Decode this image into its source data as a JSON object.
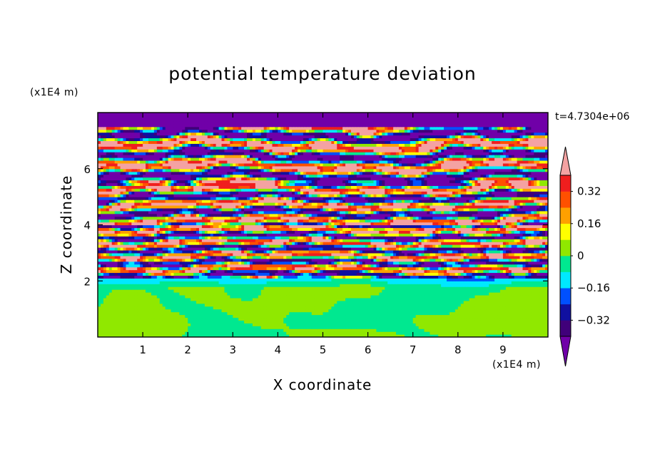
{
  "chart_data": {
    "type": "heatmap",
    "title": "potential temperature deviation",
    "xlabel": "X coordinate",
    "ylabel": "Z coordinate",
    "x_unit": "(x1E4 m)",
    "z_unit": "(x1E4 m)",
    "time_label": "t=4.7304e+06",
    "xlim": [
      0,
      10
    ],
    "ylim": [
      0,
      8
    ],
    "x_ticks": [
      "1",
      "2",
      "3",
      "4",
      "5",
      "6",
      "7",
      "8",
      "9"
    ],
    "x_tick_values": [
      1,
      2,
      3,
      4,
      5,
      6,
      7,
      8,
      9
    ],
    "y_ticks": [
      "2",
      "4",
      "6"
    ],
    "y_tick_values": [
      2,
      4,
      6
    ],
    "colorbar": {
      "levels": [
        -0.4,
        -0.32,
        -0.24,
        -0.16,
        -0.08,
        0,
        0.08,
        0.16,
        0.24,
        0.32,
        0.4
      ],
      "tick_labels": [
        "0.32",
        "0.16",
        "0",
        "−0.16",
        "−0.32"
      ],
      "tick_values": [
        0.32,
        0.16,
        0,
        -0.16,
        -0.32
      ],
      "colors": [
        "#40007a",
        "#1010a0",
        "#0050ff",
        "#00e8ff",
        "#00e890",
        "#90e800",
        "#ffff00",
        "#ffa000",
        "#ff5000",
        "#f01e1e"
      ],
      "over_color": "#f4a2a2",
      "under_color": "#7000a8",
      "extend": "both"
    },
    "layers": [
      {
        "z_range": [
          0,
          2.1
        ],
        "description_values": [
          -0.08,
          0.0,
          0.08
        ]
      },
      {
        "z_range": [
          2.1,
          4.0
        ],
        "description_values": [
          -0.4,
          0.4
        ]
      },
      {
        "z_range": [
          4.0,
          5.5
        ],
        "description_values": [
          -0.45,
          0.45
        ]
      },
      {
        "z_range": [
          5.5,
          8.0
        ],
        "description_values": [
          -0.5,
          0.5
        ]
      }
    ]
  }
}
